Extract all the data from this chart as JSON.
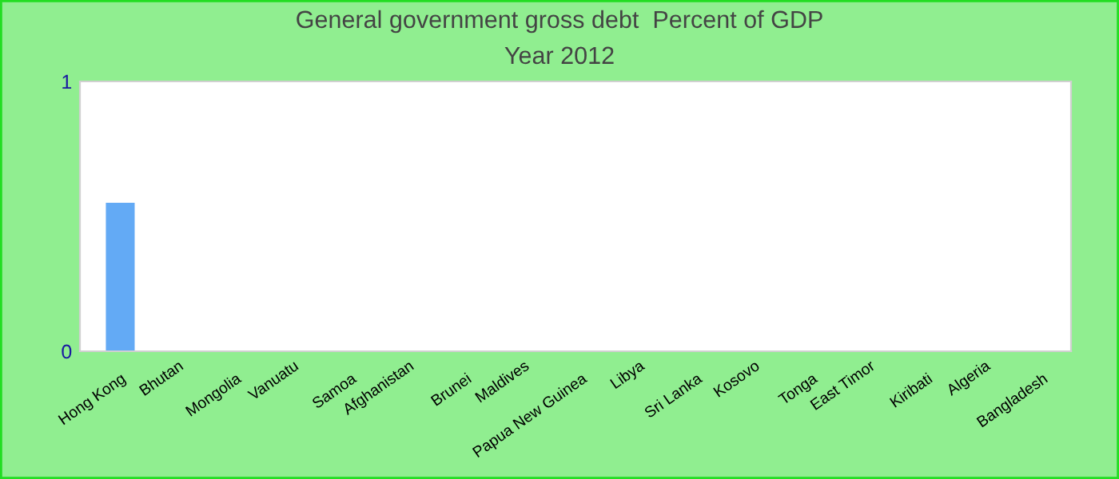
{
  "chart_data": {
    "type": "bar",
    "title": "General government gross debt  Percent of GDP",
    "subtitle": "Year 2012",
    "categories": [
      "Hong Kong",
      "Bhutan",
      "Mongolia",
      "Vanuatu",
      "Samoa",
      "Afghanistan",
      "Brunei",
      "Maldives",
      "Papua New Guinea",
      "Libya",
      "Sri Lanka",
      "Kosovo",
      "Tonga",
      "East Timor",
      "Kiribati",
      "Algeria",
      "Bangladesh"
    ],
    "values": [
      0.55,
      0,
      0,
      0,
      0,
      0,
      0,
      0,
      0,
      0,
      0,
      0,
      0,
      0,
      0,
      0,
      0
    ],
    "color": "#63aaf5",
    "ylim": [
      0,
      1
    ],
    "yticks": [
      0,
      1
    ],
    "grid": false,
    "legend": false
  }
}
